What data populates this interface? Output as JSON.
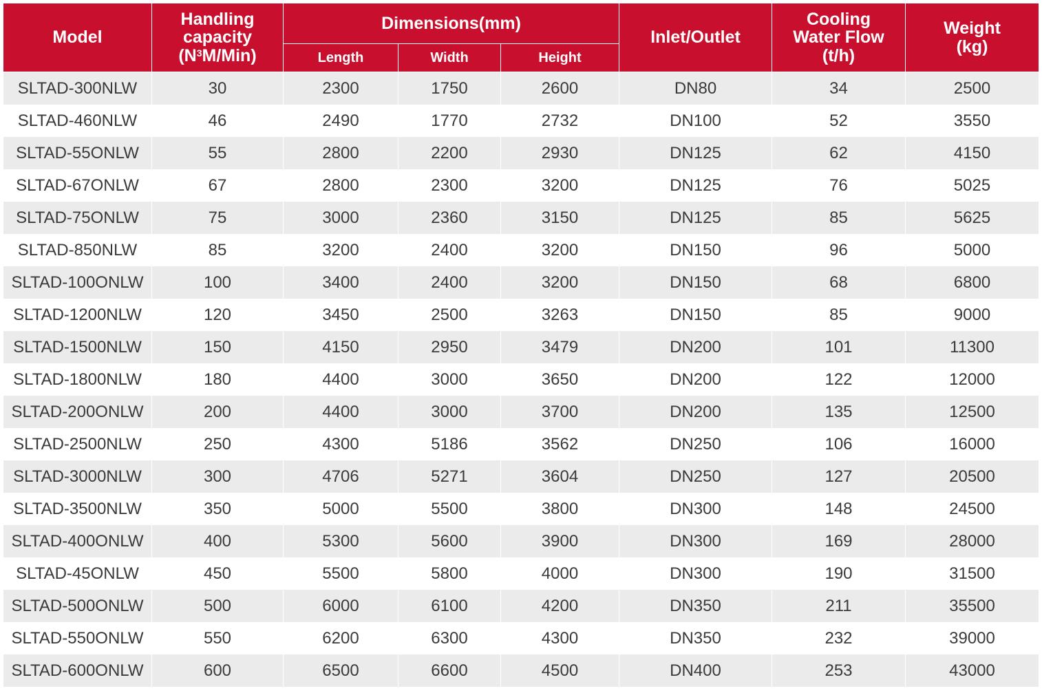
{
  "colors": {
    "header_bg": "#c8102e",
    "header_text": "#ffffff",
    "stripe": "#ebebeb"
  },
  "headers": {
    "model": "Model",
    "handling_line1": "Handling",
    "handling_line2": "capacity",
    "handling_line3_pre": "(N",
    "handling_line3_sup": "3",
    "handling_line3_post": "M/Min)",
    "dimensions": "Dimensions(mm)",
    "length": "Length",
    "width": "Width",
    "height": "Height",
    "inlet_outlet": "Inlet/Outlet",
    "cooling_line1": "Cooling",
    "cooling_line2": "Water Flow",
    "cooling_line3": "(t/h)",
    "weight_line1": "Weight",
    "weight_line2": "(kg)"
  },
  "rows": [
    [
      "SLTAD-300NLW",
      "30",
      "2300",
      "1750",
      "2600",
      "DN80",
      "34",
      "2500"
    ],
    [
      "SLTAD-460NLW",
      "46",
      "2490",
      "1770",
      "2732",
      "DN100",
      "52",
      "3550"
    ],
    [
      "SLTAD-55ONLW",
      "55",
      "2800",
      "2200",
      "2930",
      "DN125",
      "62",
      "4150"
    ],
    [
      "SLTAD-67ONLW",
      "67",
      "2800",
      "2300",
      "3200",
      "DN125",
      "76",
      "5025"
    ],
    [
      "SLTAD-75ONLW",
      "75",
      "3000",
      "2360",
      "3150",
      "DN125",
      "85",
      "5625"
    ],
    [
      "SLTAD-850NLW",
      "85",
      "3200",
      "2400",
      "3200",
      "DN150",
      "96",
      "5000"
    ],
    [
      "SLTAD-100ONLW",
      "100",
      "3400",
      "2400",
      "3200",
      "DN150",
      "68",
      "6800"
    ],
    [
      "SLTAD-1200NLW",
      "120",
      "3450",
      "2500",
      "3263",
      "DN150",
      "85",
      "9000"
    ],
    [
      "SLTAD-1500NLW",
      "150",
      "4150",
      "2950",
      "3479",
      "DN200",
      "101",
      "11300"
    ],
    [
      "SLTAD-1800NLW",
      "180",
      "4400",
      "3000",
      "3650",
      "DN200",
      "122",
      "12000"
    ],
    [
      "SLTAD-200ONLW",
      "200",
      "4400",
      "3000",
      "3700",
      "DN200",
      "135",
      "12500"
    ],
    [
      "SLTAD-2500NLW",
      "250",
      "4300",
      "5186",
      "3562",
      "DN250",
      "106",
      "16000"
    ],
    [
      "SLTAD-3000NLW",
      "300",
      "4706",
      "5271",
      "3604",
      "DN250",
      "127",
      "20500"
    ],
    [
      "SLTAD-3500NLW",
      "350",
      "5000",
      "5500",
      "3800",
      "DN300",
      "148",
      "24500"
    ],
    [
      "SLTAD-400ONLW",
      "400",
      "5300",
      "5600",
      "3900",
      "DN300",
      "169",
      "28000"
    ],
    [
      "SLTAD-45ONLW",
      "450",
      "5500",
      "5800",
      "4000",
      "DN300",
      "190",
      "31500"
    ],
    [
      "SLTAD-500ONLW",
      "500",
      "6000",
      "6100",
      "4200",
      "DN350",
      "211",
      "35500"
    ],
    [
      "SLTAD-550ONLW",
      "550",
      "6200",
      "6300",
      "4300",
      "DN350",
      "232",
      "39000"
    ],
    [
      "SLTAD-600ONLW",
      "600",
      "6500",
      "6600",
      "4500",
      "DN400",
      "253",
      "43000"
    ]
  ]
}
